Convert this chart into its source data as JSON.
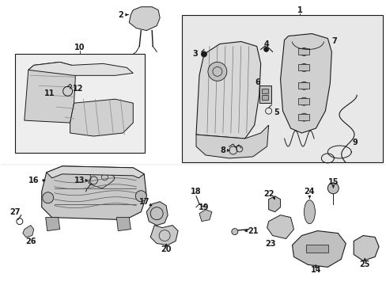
{
  "bg_color": "#ffffff",
  "line_color": "#1a1a1a",
  "gray_bg": "#e8e8e8",
  "fig_width": 4.89,
  "fig_height": 3.6,
  "dpi": 100
}
